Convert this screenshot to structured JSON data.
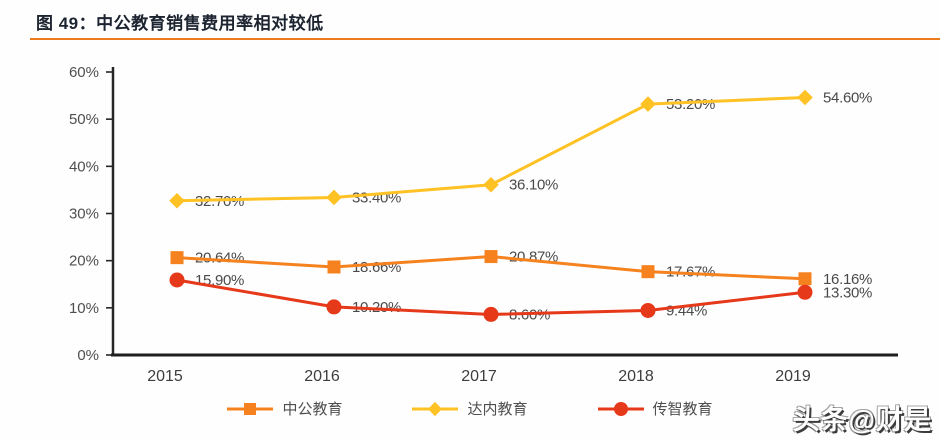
{
  "header": {
    "title": "图 49：中公教育销售费用率相对较低"
  },
  "watermark": {
    "text": "头条@财是"
  },
  "chart_data": {
    "type": "line",
    "title": "图 49：中公教育销售费用率相对较低",
    "x": [
      "2015",
      "2016",
      "2017",
      "2018",
      "2019"
    ],
    "series": [
      {
        "name": "中公教育",
        "color": "#f5821f",
        "marker": "square",
        "values": [
          20.64,
          18.66,
          20.87,
          17.67,
          16.16
        ],
        "labels": [
          "20.64%",
          "18.66%",
          "20.87%",
          "17.67%",
          "16.16%"
        ]
      },
      {
        "name": "达内教育",
        "color": "#ffc224",
        "marker": "diamond",
        "values": [
          32.7,
          33.4,
          36.1,
          53.2,
          54.6
        ],
        "labels": [
          "32.70%",
          "33.40%",
          "36.10%",
          "53.20%",
          "54.60%"
        ]
      },
      {
        "name": "传智教育",
        "color": "#e6391a",
        "marker": "circle",
        "values": [
          15.9,
          10.2,
          8.6,
          9.44,
          13.3
        ],
        "labels": [
          "15.90%",
          "10.20%",
          "8.60%",
          "9.44%",
          "13.30%"
        ]
      }
    ],
    "ylim": [
      0,
      60
    ],
    "yticks": [
      "0%",
      "10%",
      "20%",
      "30%",
      "40%",
      "50%",
      "60%"
    ],
    "xlabel": "",
    "ylabel": "",
    "grid": false,
    "legend_position": "bottom"
  }
}
